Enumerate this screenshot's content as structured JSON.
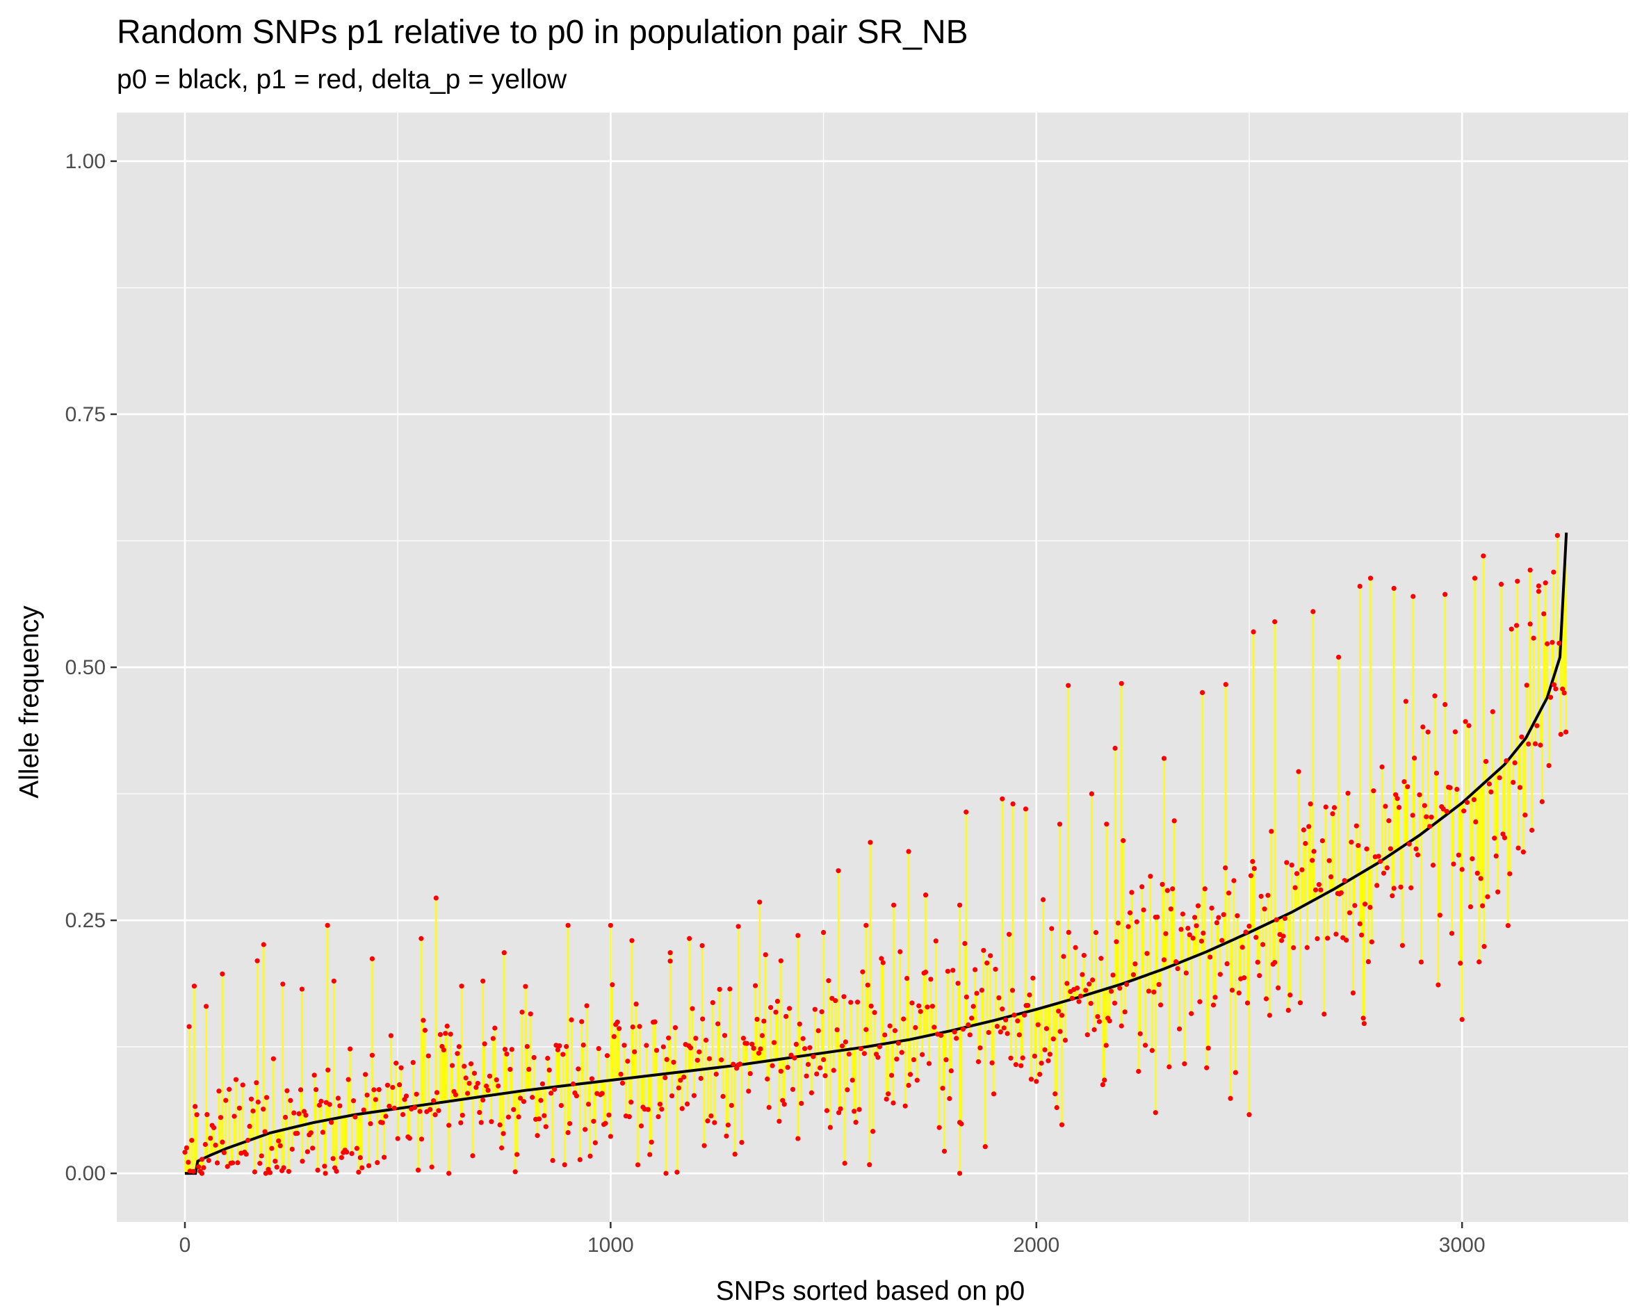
{
  "chart_data": {
    "type": "scatter",
    "title": "Random SNPs p1 relative to p0 in population pair SR_NB",
    "subtitle": "p0 = black, p1 = red, delta_p = yellow",
    "xlabel": "SNPs sorted based on p0",
    "ylabel": "Allele frequency",
    "xlim": [
      -160,
      3390
    ],
    "ylim": [
      -0.048,
      1.048
    ],
    "x_ticks": [
      0,
      1000,
      2000,
      3000
    ],
    "x_tick_labels": [
      "0",
      "1000",
      "2000",
      "3000"
    ],
    "y_ticks": [
      0.0,
      0.25,
      0.5,
      0.75,
      1.0
    ],
    "y_tick_labels": [
      "0.00",
      "0.25",
      "0.50",
      "0.75",
      "1.00"
    ],
    "grid": true,
    "panel_background": "#e5e5e5",
    "colors": {
      "p0": "#000000",
      "p1": "#ff0000",
      "delta_p": "#ffff00"
    },
    "n_snps": 3245,
    "p0_curve": [
      [
        0,
        0.0
      ],
      [
        25,
        0.0
      ],
      [
        30,
        0.012
      ],
      [
        60,
        0.018
      ],
      [
        100,
        0.025
      ],
      [
        200,
        0.04
      ],
      [
        300,
        0.05
      ],
      [
        400,
        0.058
      ],
      [
        500,
        0.064
      ],
      [
        600,
        0.07
      ],
      [
        700,
        0.076
      ],
      [
        800,
        0.082
      ],
      [
        900,
        0.087
      ],
      [
        1000,
        0.092
      ],
      [
        1100,
        0.097
      ],
      [
        1200,
        0.102
      ],
      [
        1300,
        0.107
      ],
      [
        1400,
        0.113
      ],
      [
        1500,
        0.119
      ],
      [
        1600,
        0.125
      ],
      [
        1700,
        0.132
      ],
      [
        1800,
        0.141
      ],
      [
        1900,
        0.151
      ],
      [
        2000,
        0.162
      ],
      [
        2100,
        0.174
      ],
      [
        2200,
        0.187
      ],
      [
        2300,
        0.202
      ],
      [
        2400,
        0.219
      ],
      [
        2500,
        0.238
      ],
      [
        2600,
        0.258
      ],
      [
        2700,
        0.281
      ],
      [
        2800,
        0.306
      ],
      [
        2900,
        0.334
      ],
      [
        3000,
        0.366
      ],
      [
        3100,
        0.404
      ],
      [
        3150,
        0.43
      ],
      [
        3200,
        0.47
      ],
      [
        3230,
        0.51
      ],
      [
        3245,
        0.633
      ]
    ],
    "p1_outliers": [
      [
        10,
        0.145
      ],
      [
        22,
        0.185
      ],
      [
        50,
        0.165
      ],
      [
        88,
        0.197
      ],
      [
        170,
        0.21
      ],
      [
        185,
        0.226
      ],
      [
        230,
        0.187
      ],
      [
        275,
        0.182
      ],
      [
        335,
        0.245
      ],
      [
        350,
        0.19
      ],
      [
        440,
        0.212
      ],
      [
        555,
        0.232
      ],
      [
        590,
        0.272
      ],
      [
        650,
        0.185
      ],
      [
        700,
        0.19
      ],
      [
        750,
        0.218
      ],
      [
        900,
        0.245
      ],
      [
        1000,
        0.245
      ],
      [
        1050,
        0.23
      ],
      [
        1140,
        0.218
      ],
      [
        1185,
        0.232
      ],
      [
        1215,
        0.225
      ],
      [
        1300,
        0.244
      ],
      [
        1350,
        0.268
      ],
      [
        1400,
        0.21
      ],
      [
        1440,
        0.235
      ],
      [
        1500,
        0.238
      ],
      [
        1535,
        0.299
      ],
      [
        1600,
        0.245
      ],
      [
        1610,
        0.327
      ],
      [
        1665,
        0.265
      ],
      [
        1700,
        0.318
      ],
      [
        1740,
        0.275
      ],
      [
        1820,
        0.265
      ],
      [
        1835,
        0.357
      ],
      [
        1920,
        0.37
      ],
      [
        1945,
        0.365
      ],
      [
        1975,
        0.36
      ],
      [
        2055,
        0.345
      ],
      [
        2075,
        0.482
      ],
      [
        2130,
        0.375
      ],
      [
        2165,
        0.345
      ],
      [
        2185,
        0.42
      ],
      [
        2200,
        0.484
      ],
      [
        2300,
        0.41
      ],
      [
        2390,
        0.475
      ],
      [
        2445,
        0.483
      ],
      [
        2510,
        0.535
      ],
      [
        2560,
        0.545
      ],
      [
        2650,
        0.555
      ],
      [
        2710,
        0.51
      ],
      [
        2760,
        0.58
      ],
      [
        2785,
        0.588
      ],
      [
        2840,
        0.578
      ],
      [
        2885,
        0.57
      ],
      [
        2960,
        0.572
      ],
      [
        3030,
        0.588
      ],
      [
        3050,
        0.61
      ],
      [
        3130,
        0.585
      ],
      [
        3160,
        0.596
      ],
      [
        3180,
        0.575
      ],
      [
        3215,
        0.594
      ],
      [
        3000,
        0.152
      ],
      [
        2770,
        0.148
      ],
      [
        2500,
        0.058
      ],
      [
        2280,
        0.06
      ],
      [
        2060,
        0.048
      ],
      [
        1820,
        0.0
      ],
      [
        1550,
        0.01
      ],
      [
        1130,
        0.0
      ],
      [
        620,
        0.0
      ],
      [
        330,
        0.0
      ],
      [
        190,
        0.0
      ],
      [
        40,
        0.0
      ]
    ]
  }
}
